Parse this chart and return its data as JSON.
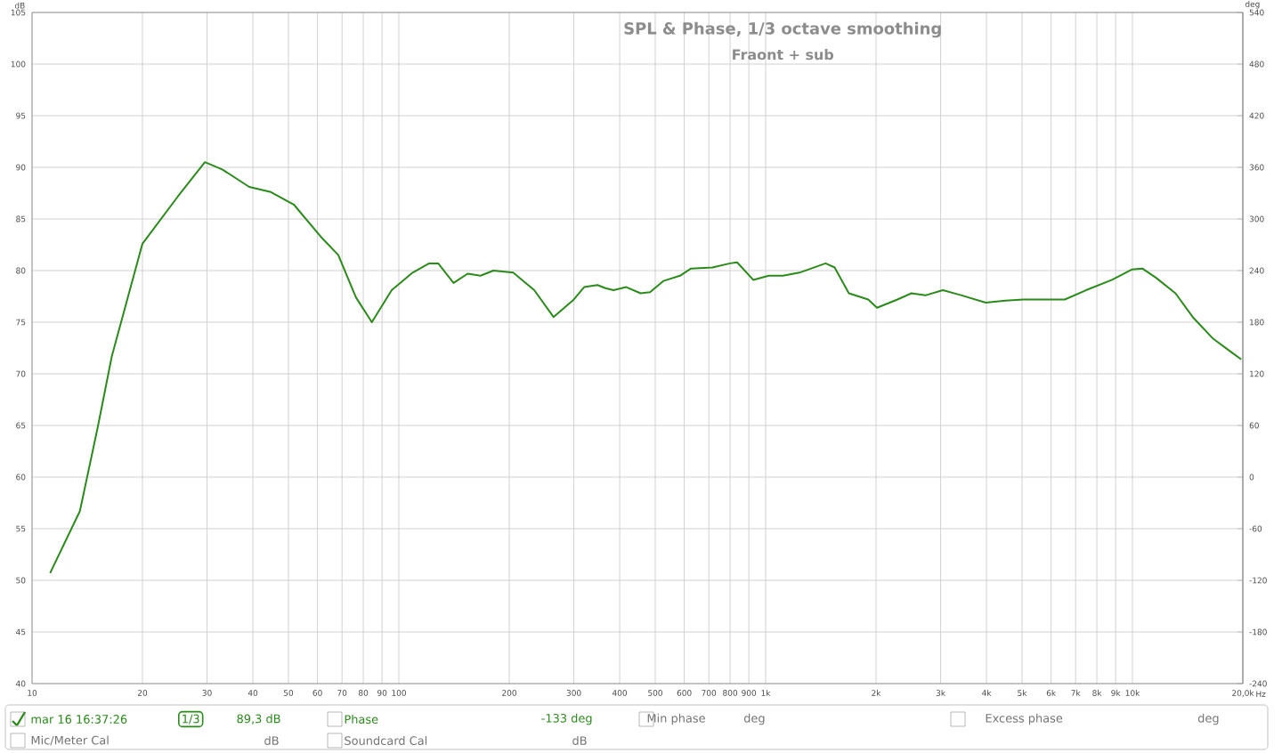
{
  "chart_data": {
    "type": "line",
    "title": "SPL & Phase, 1/3 octave smoothing",
    "subtitle": "Fraont + sub",
    "xlabel": "Hz",
    "ylabel": "dB",
    "y2label": "deg",
    "log": "x",
    "grid": true,
    "legend": "bottom",
    "marker": "none",
    "line_style": "solid",
    "xlim": [
      10,
      20000
    ],
    "xticks": [
      10,
      20,
      30,
      40,
      50,
      60,
      70,
      80,
      90,
      100,
      200,
      300,
      400,
      500,
      600,
      700,
      800,
      900,
      {
        "value": 1000,
        "label": "1k"
      },
      {
        "value": 2000,
        "label": "2k"
      },
      {
        "value": 3000,
        "label": "3k"
      },
      {
        "value": 4000,
        "label": "4k"
      },
      {
        "value": 5000,
        "label": "5k"
      },
      {
        "value": 6000,
        "label": "6k"
      },
      {
        "value": 7000,
        "label": "7k"
      },
      {
        "value": 8000,
        "label": "8k"
      },
      {
        "value": 9000,
        "label": "9k"
      },
      {
        "value": 10000,
        "label": "10k"
      },
      {
        "value": 20000,
        "label": "20,0k"
      }
    ],
    "ylim": [
      40,
      105
    ],
    "yticks": [
      40,
      45,
      50,
      55,
      60,
      65,
      70,
      75,
      80,
      85,
      90,
      95,
      100,
      105
    ],
    "y2lim": [
      -240,
      540
    ],
    "y2ticks": [
      -240,
      -180,
      -120,
      -60,
      0,
      60,
      120,
      180,
      240,
      300,
      360,
      420,
      480,
      540
    ],
    "series": [
      {
        "name": "mar 16 16:37:26",
        "color": "#2a8a1a",
        "x": [
          11.2,
          13.5,
          15.1,
          16.5,
          20.0,
          25.0,
          29.6,
          33,
          39.1,
          44.8,
          51.7,
          61.2,
          68.4,
          76.4,
          84.4,
          95.6,
          109,
          121,
          128,
          141,
          154,
          167,
          181,
          205,
          234,
          264,
          300,
          320,
          348,
          366,
          385,
          417,
          456,
          484,
          527,
          584,
          626,
          716,
          800,
          836,
          925,
          1020,
          1115,
          1236,
          1457,
          1542,
          1686,
          1904,
          2012,
          2287,
          2497,
          2724,
          3043,
          3425,
          3982,
          4505,
          5045,
          5648,
          6539,
          7473,
          8797,
          9955,
          10640,
          11600,
          13100,
          14600,
          16600,
          18600,
          19800
        ],
        "values": [
          50.7,
          56.7,
          64.8,
          71.7,
          82.6,
          87.2,
          90.5,
          89.8,
          88.1,
          87.6,
          86.4,
          83.3,
          81.5,
          77.4,
          75.0,
          78.1,
          79.8,
          80.7,
          80.7,
          78.8,
          79.7,
          79.5,
          80.0,
          79.8,
          78.1,
          75.5,
          77.2,
          78.4,
          78.6,
          78.3,
          78.1,
          78.4,
          77.8,
          77.9,
          79.0,
          79.5,
          80.2,
          80.3,
          80.7,
          80.8,
          79.1,
          79.5,
          79.5,
          79.8,
          80.7,
          80.3,
          77.8,
          77.2,
          76.4,
          77.2,
          77.8,
          77.6,
          78.1,
          77.6,
          76.9,
          77.1,
          77.2,
          77.2,
          77.2,
          78.1,
          79.1,
          80.1,
          80.2,
          79.3,
          77.8,
          75.5,
          73.4,
          72.1,
          71.4
        ]
      }
    ],
    "annotations": [
      "1/3",
      "89,3 dB",
      "Phase",
      "-133 deg",
      "Min phase",
      "deg",
      "Excess phase",
      "deg",
      "Mic/Meter Cal",
      "dB",
      "Soundcard Cal",
      "dB"
    ]
  }
}
